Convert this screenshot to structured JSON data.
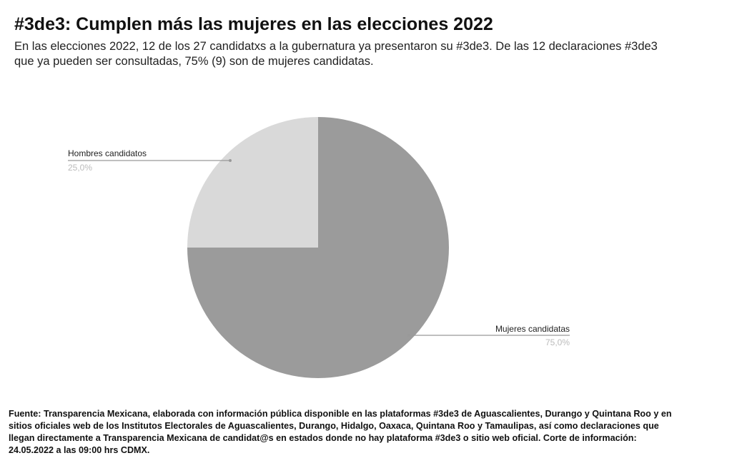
{
  "header": {
    "title": "#3de3: Cumplen más las mujeres en las elecciones 2022",
    "subtitle": "En las elecciones 2022, 12 de los 27 candidatxs a la gubernatura ya presentaron su #3de3. De las 12 declaraciones #3de3 que ya pueden ser consultadas, 75% (9) son de mujeres candidatas."
  },
  "chart_data": {
    "type": "pie",
    "slices": [
      {
        "label": "Mujeres candidatas",
        "value": 75.0,
        "value_label": "75,0%",
        "color": "#9b9b9b"
      },
      {
        "label": "Hombres candidatos",
        "value": 25.0,
        "value_label": "25,0%",
        "color": "#d9d9d9"
      }
    ],
    "start": "12 o'clock",
    "direction": "clockwise",
    "legend": "callout labels"
  },
  "footer": {
    "source": "Fuente: Transparencia Mexicana, elaborada con información pública disponible en las plataformas #3de3 de Aguascalientes, Durango y Quintana Roo y en sitios oficiales web de los Institutos Electorales de Aguascalientes, Durango, Hidalgo, Oaxaca, Quintana Roo y Tamaulipas, así como declaraciones que llegan directamente a Transparencia Mexicana de candidat@s en estados donde no hay plataforma #3de3 o sitio web oficial. Corte de información: 24.05.2022 a las 09:00 hrs CDMX."
  }
}
